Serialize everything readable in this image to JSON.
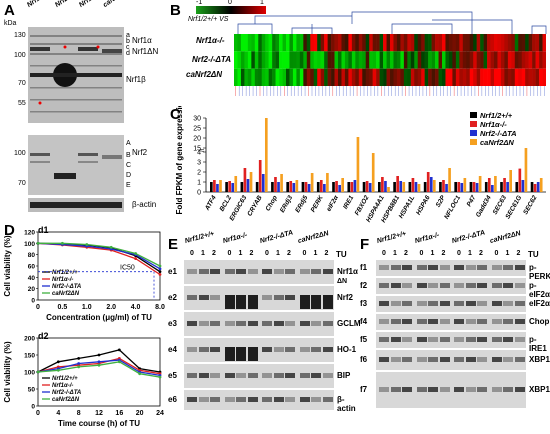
{
  "panels": {
    "A": {
      "label": "A",
      "kda": "kDa",
      "columns": [
        "Nrf1/2+/+",
        "Nrf2-/-ΔTA",
        "Nrf1α-/-",
        "caNrf2ΔN"
      ],
      "upper_markers": [
        "130",
        "100",
        "70",
        "55"
      ],
      "upper_bands": [
        "Nrf1α",
        "Nrf1ΔN",
        "Nrf1β"
      ],
      "upper_letters": [
        "a",
        "b",
        "c",
        "d"
      ],
      "lower_markers": [
        "100",
        "70"
      ],
      "lower_band": "Nrf2",
      "lower_letters": [
        "A",
        "B",
        "C",
        "D",
        "E"
      ],
      "actin": "β-actin"
    },
    "B": {
      "label": "B",
      "legend": [
        "-1",
        "0",
        "1"
      ],
      "vs": "Nrf1/2+/+ VS",
      "rows": [
        "Nrf1α-/-",
        "Nrf2-/-ΔTA",
        "caNrf2ΔN"
      ]
    },
    "C": {
      "label": "C",
      "ylabel": "Fold FPKM of gene expression",
      "legend": [
        "Nrf1/2+/+",
        "Nrf1α-/-",
        "Nrf2-/-ΔTA",
        "caNrf2ΔN"
      ]
    },
    "D": {
      "label": "D",
      "d1": {
        "label": "d1",
        "ylabel": "Cell viability (%)",
        "xlabel": "Concentration (μg/ml) of TU",
        "ic50": "IC50",
        "xticks": [
          "0",
          "0.5",
          "1.0",
          "2.0",
          "4.0",
          "8.0"
        ],
        "yticks": [
          "120",
          "100",
          "80",
          "60",
          "40",
          "20",
          "0"
        ]
      },
      "d2": {
        "label": "d2",
        "ylabel": "Cell viability (%)",
        "xlabel": "Time course (h) of TU",
        "xticks": [
          "0",
          "4",
          "8",
          "12",
          "16",
          "20",
          "24"
        ],
        "yticks": [
          "200",
          "150",
          "100",
          "50",
          "0"
        ]
      },
      "legend": [
        "Nrf1/2+/+",
        "Nrf1α-/-",
        "Nrf2-/-ΔTA",
        "caNrf2ΔN"
      ]
    },
    "E": {
      "label": "E",
      "columns": [
        "Nrf1/2+/+",
        "Nrf1α-/-",
        "Nrf2-/-ΔTA",
        "caNrf2ΔN"
      ],
      "tu": "TU",
      "lanes": [
        "0",
        "1",
        "2"
      ],
      "rows": [
        {
          "id": "e1",
          "name": "Nrf1α"
        },
        {
          "id": "e2",
          "name": "Nrf2"
        },
        {
          "id": "e3",
          "name": "GCLM"
        },
        {
          "id": "e4",
          "name": "HO-1"
        },
        {
          "id": "e5",
          "name": "BIP"
        },
        {
          "id": "e6",
          "name": "β-actin"
        }
      ],
      "extra": [
        "ΔN"
      ]
    },
    "F": {
      "label": "F",
      "columns": [
        "Nrf1/2+/+",
        "Nrf1α-/-",
        "Nrf2-/-ΔTA",
        "caNrf2ΔN"
      ],
      "tu": "TU",
      "lanes": [
        "0",
        "1",
        "2"
      ],
      "rows": [
        {
          "id": "f1",
          "name": "p-PERK"
        },
        {
          "id": "f2",
          "name": "p-eIF2α"
        },
        {
          "id": "f3",
          "name": "eIF2α"
        },
        {
          "id": "f4",
          "name": "Chop"
        },
        {
          "id": "f5",
          "name": "p-IRE1"
        },
        {
          "id": "f6",
          "name": "XBP1s"
        },
        {
          "id": "f7",
          "name": "XBP1"
        }
      ]
    }
  },
  "chart_data": [
    {
      "type": "bar",
      "title": "",
      "ylabel": "Fold FPKM of gene expression",
      "yticks": [
        "0",
        "1",
        "2",
        "3",
        "4",
        "15",
        "20",
        "25",
        "30"
      ],
      "categories": [
        "ATF4",
        "BCL2",
        "ERGIC63",
        "CRYAB",
        "Chop",
        "ERdj3",
        "ERdj5",
        "PERK",
        "eIF2α",
        "IRE1",
        "FBXO2",
        "HSPA4A1",
        "HSPB8B1",
        "HSPA1L",
        "HSPA6",
        "S2P",
        "NFLOC1",
        "P47",
        "Gadd34",
        "SEC63",
        "SEC61G",
        "SEC62"
      ],
      "series": [
        {
          "name": "Nrf1/2+/+",
          "color": "#000000",
          "values": [
            1,
            1,
            1,
            1,
            1,
            1,
            1,
            1,
            1,
            1,
            1,
            1,
            1,
            1,
            1,
            1,
            1,
            1,
            1,
            1,
            1,
            1
          ]
        },
        {
          "name": "Nrf1α-/-",
          "color": "#e02020",
          "values": [
            1.2,
            1.1,
            2.4,
            3.2,
            1.5,
            1.1,
            1.0,
            1.2,
            1.1,
            1.0,
            1.1,
            1.5,
            1.6,
            1.4,
            2.0,
            1.2,
            1.0,
            1.0,
            1.4,
            1.4,
            4.7,
            0.8
          ]
        },
        {
          "name": "Nrf2-/-ΔTA",
          "color": "#2030d0",
          "values": [
            0.8,
            0.9,
            1.3,
            1.8,
            1.0,
            0.9,
            0.8,
            0.8,
            0.7,
            1.2,
            0.9,
            1.1,
            1.1,
            1.0,
            1.5,
            0.8,
            0.9,
            0.9,
            0.7,
            1.0,
            1.2,
            1.0
          ]
        },
        {
          "name": "caNrf2ΔN",
          "color": "#f5a020",
          "values": [
            1.2,
            1.6,
            2.0,
            30.0,
            1.8,
            1.2,
            1.9,
            1.9,
            1.4,
            20.5,
            3.9,
            0.5,
            1.0,
            0.8,
            1.2,
            2.4,
            1.4,
            1.6,
            1.6,
            2.2,
            15.0,
            1.4
          ]
        }
      ]
    },
    {
      "type": "line",
      "title": "d1",
      "xlabel": "Concentration (μg/ml) of TU",
      "ylabel": "Cell viability (%)",
      "x": [
        0,
        0.5,
        1.0,
        2.0,
        4.0,
        8.0
      ],
      "ylim": [
        0,
        120
      ],
      "series": [
        {
          "name": "Nrf1/2+/+",
          "color": "#000000",
          "values": [
            100,
            99,
            97,
            92,
            78,
            50
          ]
        },
        {
          "name": "Nrf1α-/-",
          "color": "#e02020",
          "values": [
            100,
            97,
            93,
            88,
            73,
            45
          ]
        },
        {
          "name": "Nrf2-/-ΔTA",
          "color": "#2030d0",
          "values": [
            100,
            98,
            95,
            90,
            80,
            55
          ]
        },
        {
          "name": "caNrf2ΔN",
          "color": "#40b040",
          "values": [
            100,
            100,
            98,
            93,
            82,
            60
          ]
        }
      ]
    },
    {
      "type": "line",
      "title": "d2",
      "xlabel": "Time course (h) of TU",
      "ylabel": "Cell viability (%)",
      "x": [
        0,
        4,
        8,
        12,
        16,
        20,
        24
      ],
      "ylim": [
        0,
        200
      ],
      "series": [
        {
          "name": "Nrf1/2+/+",
          "color": "#000000",
          "values": [
            100,
            130,
            140,
            150,
            165,
            110,
            100
          ]
        },
        {
          "name": "Nrf1α-/-",
          "color": "#e02020",
          "values": [
            100,
            115,
            120,
            125,
            140,
            105,
            95
          ]
        },
        {
          "name": "Nrf2-/-ΔTA",
          "color": "#2030d0",
          "values": [
            100,
            110,
            125,
            130,
            135,
            100,
            90
          ]
        },
        {
          "name": "caNrf2ΔN",
          "color": "#40b040",
          "values": [
            100,
            105,
            115,
            120,
            130,
            95,
            85
          ]
        }
      ]
    }
  ]
}
